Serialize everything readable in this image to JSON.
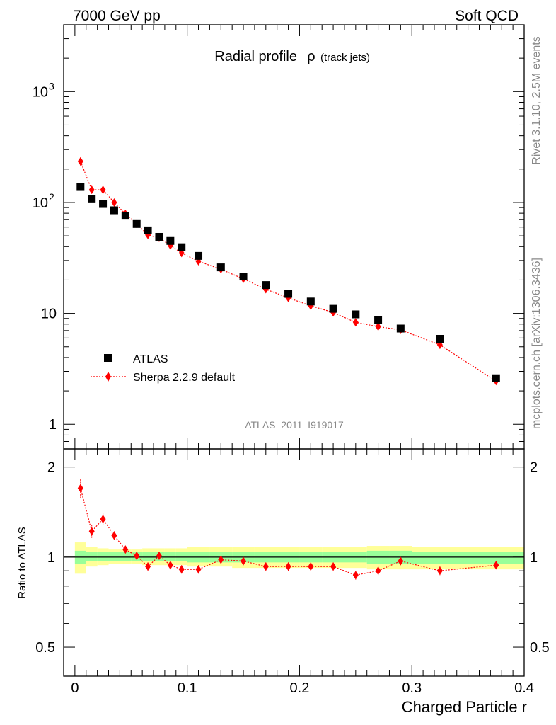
{
  "header": {
    "left": "7000 GeV pp",
    "right": "Soft QCD"
  },
  "side_labels": {
    "rivet": "Rivet 3.1.10,  2.5M events",
    "mcplots": "mcplots.cern.ch [arXiv:1306.3436]"
  },
  "chart_data": [
    {
      "type": "scatter",
      "title_main": "Radial profile",
      "title_symbol": "ρ",
      "title_sub": "(track jets)",
      "analysis_label": "ATLAS_2011_I919017",
      "xlabel": "",
      "ylabel": "",
      "xlim": [
        -0.01,
        0.4
      ],
      "ylim": [
        0.6,
        4000
      ],
      "yscale": "log",
      "ytick_labels": [
        "1",
        "10",
        "10^2",
        "10^3"
      ],
      "ytick_values": [
        1,
        10,
        100,
        1000
      ],
      "legend_position": "lower-left",
      "series": [
        {
          "name": "ATLAS",
          "color": "#000000",
          "marker": "square",
          "x": [
            0.005,
            0.015,
            0.025,
            0.035,
            0.045,
            0.055,
            0.065,
            0.075,
            0.085,
            0.095,
            0.11,
            0.13,
            0.15,
            0.17,
            0.19,
            0.21,
            0.23,
            0.25,
            0.27,
            0.29,
            0.325,
            0.375
          ],
          "y": [
            138,
            107,
            97,
            85,
            76,
            64,
            56,
            49,
            45,
            39.5,
            33,
            26,
            21.5,
            18,
            15,
            12.8,
            11,
            9.8,
            8.7,
            7.3,
            5.9,
            2.6
          ]
        },
        {
          "name": "Sherpa 2.2.9 default",
          "color": "#ff0000",
          "marker": "diamond",
          "line": "dotted",
          "x": [
            0.005,
            0.015,
            0.025,
            0.035,
            0.045,
            0.055,
            0.065,
            0.075,
            0.085,
            0.095,
            0.11,
            0.13,
            0.15,
            0.17,
            0.19,
            0.21,
            0.23,
            0.25,
            0.27,
            0.29,
            0.325,
            0.375
          ],
          "y": [
            235,
            130,
            130,
            100,
            79,
            64,
            51,
            48,
            41,
            35,
            29.5,
            25,
            20.5,
            16.5,
            13.8,
            11.7,
            10.2,
            8.3,
            7.6,
            7.1,
            5.2,
            2.45
          ],
          "yerr": [
            20,
            9,
            8,
            5,
            3,
            2,
            2,
            2,
            1.5,
            1.5,
            1,
            1,
            0.8,
            0.6,
            0.5,
            0.4,
            0.4,
            0.3,
            0.3,
            0.3,
            0.2,
            0.1
          ]
        }
      ]
    },
    {
      "type": "scatter",
      "xlabel": "Charged Particle r",
      "ylabel": "Ratio to ATLAS",
      "xlim": [
        -0.01,
        0.4
      ],
      "ylim": [
        0.4,
        2.3
      ],
      "yscale": "log",
      "xtick_labels": [
        "0",
        "0.1",
        "0.2",
        "0.3",
        "0.4"
      ],
      "xtick_values": [
        0,
        0.1,
        0.2,
        0.3,
        0.4
      ],
      "ytick_labels": [
        "0.5",
        "1",
        "2"
      ],
      "ytick_values": [
        0.5,
        1,
        2
      ],
      "reference_line": 1,
      "bands": {
        "edges": [
          0,
          0.01,
          0.02,
          0.03,
          0.04,
          0.05,
          0.06,
          0.07,
          0.08,
          0.09,
          0.1,
          0.12,
          0.14,
          0.16,
          0.18,
          0.2,
          0.22,
          0.24,
          0.26,
          0.28,
          0.3,
          0.35,
          0.4
        ],
        "yellow_low": [
          0.88,
          0.93,
          0.94,
          0.95,
          0.95,
          0.95,
          0.94,
          0.94,
          0.94,
          0.94,
          0.93,
          0.93,
          0.92,
          0.92,
          0.92,
          0.92,
          0.92,
          0.92,
          0.91,
          0.91,
          0.91,
          0.91
        ],
        "yellow_high": [
          1.12,
          1.08,
          1.07,
          1.06,
          1.06,
          1.06,
          1.07,
          1.07,
          1.07,
          1.07,
          1.08,
          1.08,
          1.08,
          1.08,
          1.08,
          1.08,
          1.08,
          1.08,
          1.09,
          1.09,
          1.08,
          1.08
        ],
        "green_low": [
          0.95,
          0.97,
          0.97,
          0.97,
          0.97,
          0.97,
          0.97,
          0.97,
          0.97,
          0.97,
          0.96,
          0.96,
          0.96,
          0.96,
          0.96,
          0.96,
          0.96,
          0.96,
          0.95,
          0.95,
          0.95,
          0.95
        ],
        "green_high": [
          1.05,
          1.04,
          1.04,
          1.04,
          1.04,
          1.04,
          1.04,
          1.04,
          1.04,
          1.04,
          1.04,
          1.04,
          1.04,
          1.04,
          1.04,
          1.04,
          1.04,
          1.04,
          1.05,
          1.05,
          1.04,
          1.04
        ],
        "yellow_color": "#ffff99",
        "green_color": "#99ff99"
      },
      "series": [
        {
          "name": "Sherpa 2.2.9 default",
          "color": "#ff0000",
          "marker": "diamond",
          "line": "dotted",
          "x": [
            0.005,
            0.015,
            0.025,
            0.035,
            0.045,
            0.055,
            0.065,
            0.075,
            0.085,
            0.095,
            0.11,
            0.13,
            0.15,
            0.17,
            0.19,
            0.21,
            0.23,
            0.25,
            0.27,
            0.29,
            0.325,
            0.375
          ],
          "y": [
            1.7,
            1.22,
            1.34,
            1.18,
            1.06,
            1.01,
            0.93,
            1.01,
            0.94,
            0.91,
            0.91,
            0.98,
            0.97,
            0.93,
            0.93,
            0.93,
            0.93,
            0.87,
            0.9,
            0.97,
            0.9,
            0.94
          ],
          "yerr": [
            0.12,
            0.06,
            0.06,
            0.04,
            0.03,
            0.03,
            0.03,
            0.03,
            0.03,
            0.03,
            0.03,
            0.03,
            0.03,
            0.03,
            0.03,
            0.03,
            0.03,
            0.03,
            0.03,
            0.03,
            0.03,
            0.03
          ]
        }
      ]
    }
  ]
}
